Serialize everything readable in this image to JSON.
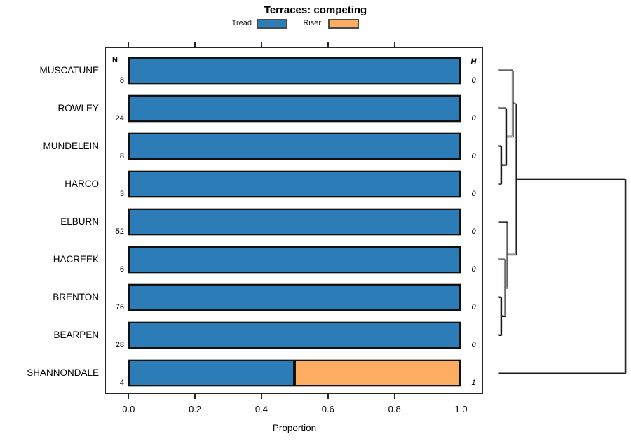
{
  "title": "Terraces: competing",
  "legend": [
    {
      "label": "Tread",
      "color": "#2C7CB8"
    },
    {
      "label": "Riser",
      "color": "#FCAD62"
    }
  ],
  "columns": {
    "n_header": "N",
    "h_header": "H"
  },
  "axis": {
    "label": "Proportion",
    "ticks": [
      "0.0",
      "0.2",
      "0.4",
      "0.6",
      "0.8",
      "1.0"
    ],
    "tick_values": [
      0,
      0.2,
      0.4,
      0.6,
      0.8,
      1
    ]
  },
  "chart_data": {
    "type": "bar",
    "orientation": "horizontal",
    "stacked": true,
    "title": "Terraces: competing",
    "xlabel": "Proportion",
    "xlim": [
      0,
      1
    ],
    "categories": [
      "MUSCATUNE",
      "ROWLEY",
      "MUNDELEIN",
      "HARCO",
      "ELBURN",
      "HACREEK",
      "BRENTON",
      "BEARPEN",
      "SHANNONDALE"
    ],
    "n_values": [
      8,
      24,
      8,
      3,
      52,
      6,
      76,
      28,
      4
    ],
    "h_values": [
      0,
      0,
      0,
      0,
      0,
      0,
      0,
      0,
      1
    ],
    "series": [
      {
        "name": "Tread",
        "color": "#2C7CB8",
        "values": [
          1,
          1,
          1,
          1,
          1,
          1,
          1,
          1,
          0.5
        ]
      },
      {
        "name": "Riser",
        "color": "#FCAD62",
        "values": [
          0,
          0,
          0,
          0,
          0,
          0,
          0,
          0,
          0.5
        ]
      }
    ],
    "dendrogram": {
      "legend_note": "right-margin cluster tree; heights relative to max merge",
      "merges": [
        {
          "a": "L2",
          "b": "L3",
          "h": 0.022
        },
        {
          "a": "L1",
          "b": "M0",
          "h": 0.061
        },
        {
          "a": "L0",
          "b": "M1",
          "h": 0.113
        },
        {
          "a": "L6",
          "b": "L7",
          "h": 0.022
        },
        {
          "a": "L5",
          "b": "M3",
          "h": 0.053
        },
        {
          "a": "L4",
          "b": "M4",
          "h": 0.069
        },
        {
          "a": "M2",
          "b": "M5",
          "h": 0.137
        },
        {
          "a": "M6",
          "b": "L8",
          "h": 1.0
        }
      ]
    }
  }
}
